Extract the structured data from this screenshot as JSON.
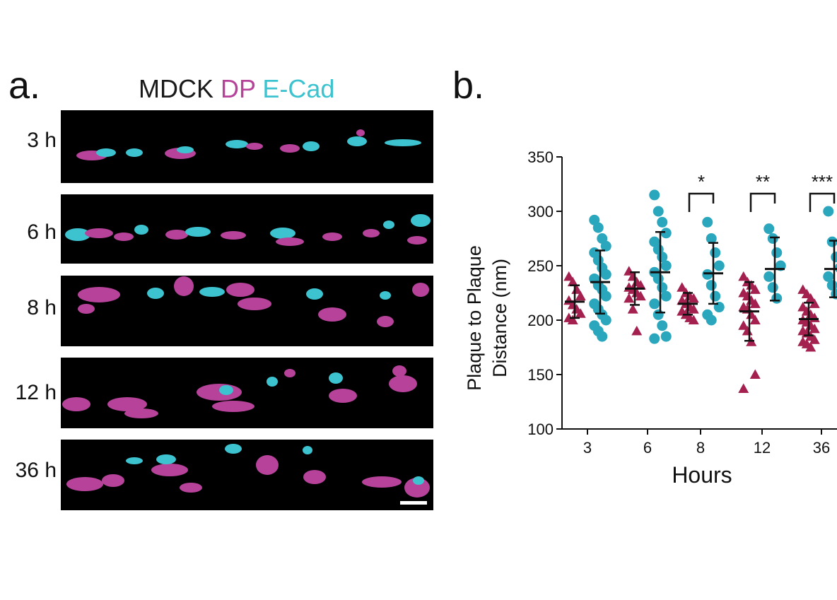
{
  "panel_a": {
    "letter": "a.",
    "title_parts": [
      "MDCK",
      "DP",
      "E-Cad"
    ],
    "rows": [
      "3 h",
      "6 h",
      "8 h",
      "12 h",
      "36 h"
    ],
    "colors": {
      "dp": "#b6429a",
      "ecad": "#3cc3cf",
      "background": "#000000"
    }
  },
  "panel_b": {
    "letter": "b."
  },
  "chart_data": {
    "type": "scatter",
    "xlabel": "Hours",
    "ylabel_lines": [
      "Plaque to Plaque",
      "Distance (nm)"
    ],
    "categories": [
      "3",
      "6",
      "8",
      "12",
      "36"
    ],
    "ylim": [
      100,
      350
    ],
    "yticks": [
      100,
      150,
      200,
      250,
      300,
      350
    ],
    "grid": false,
    "series": [
      {
        "color": "#a3204f",
        "marker": "triangle",
        "means": [
          217,
          229,
          215,
          208,
          201
        ],
        "sd": [
          15,
          15,
          10,
          27,
          15
        ],
        "points": [
          [
            240,
            235,
            228,
            222,
            218,
            214,
            210,
            206,
            202,
            200
          ],
          [
            245,
            240,
            235,
            232,
            230,
            228,
            225,
            222,
            220,
            210,
            190
          ],
          [
            230,
            225,
            222,
            220,
            218,
            215,
            212,
            210,
            208,
            205,
            202,
            200
          ],
          [
            240,
            235,
            232,
            228,
            225,
            222,
            218,
            215,
            212,
            210,
            205,
            200,
            195,
            190,
            180,
            150,
            137
          ],
          [
            228,
            224,
            220,
            215,
            212,
            208,
            205,
            202,
            200,
            198,
            195,
            192,
            190,
            188,
            185,
            182,
            180,
            178,
            175
          ]
        ]
      },
      {
        "color": "#2aa6bd",
        "marker": "circle",
        "means": [
          235,
          244,
          243,
          247,
          247
        ],
        "sd": [
          29,
          37,
          28,
          29,
          26
        ],
        "points": [
          [
            292,
            285,
            275,
            268,
            262,
            255,
            248,
            242,
            238,
            232,
            228,
            222,
            215,
            210,
            205,
            200,
            195,
            190,
            185
          ],
          [
            315,
            300,
            290,
            280,
            272,
            265,
            258,
            250,
            244,
            238,
            230,
            222,
            215,
            205,
            195,
            185,
            183
          ],
          [
            290,
            275,
            262,
            250,
            242,
            232,
            222,
            212,
            205,
            200
          ],
          [
            284,
            275,
            262,
            250,
            240,
            230,
            220
          ],
          [
            300,
            272,
            258,
            248,
            240,
            232,
            224
          ]
        ]
      }
    ],
    "significance": [
      {
        "category": "8",
        "label": "*"
      },
      {
        "category": "12",
        "label": "**"
      },
      {
        "category": "36",
        "label": "***"
      }
    ]
  }
}
